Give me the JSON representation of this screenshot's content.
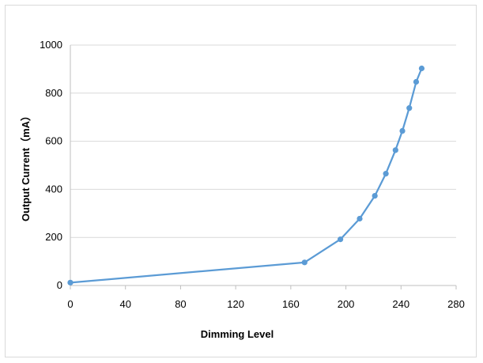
{
  "chart_data": {
    "type": "line",
    "xlabel": "Dimming Level",
    "ylabel": "Output Current（mA）",
    "xlim": [
      0,
      280
    ],
    "ylim": [
      0,
      1000
    ],
    "x_ticks": [
      0,
      40,
      80,
      120,
      160,
      200,
      240,
      280
    ],
    "y_ticks": [
      0,
      200,
      400,
      600,
      800,
      1000
    ],
    "grid": "horizontal",
    "legend": "none",
    "series": [
      {
        "color": "#5b9bd5",
        "x": [
          0,
          170,
          196,
          210,
          221,
          229,
          236,
          241,
          246,
          251,
          255
        ],
        "y": [
          12,
          96,
          192,
          278,
          373,
          465,
          563,
          643,
          738,
          847,
          903
        ]
      }
    ]
  }
}
